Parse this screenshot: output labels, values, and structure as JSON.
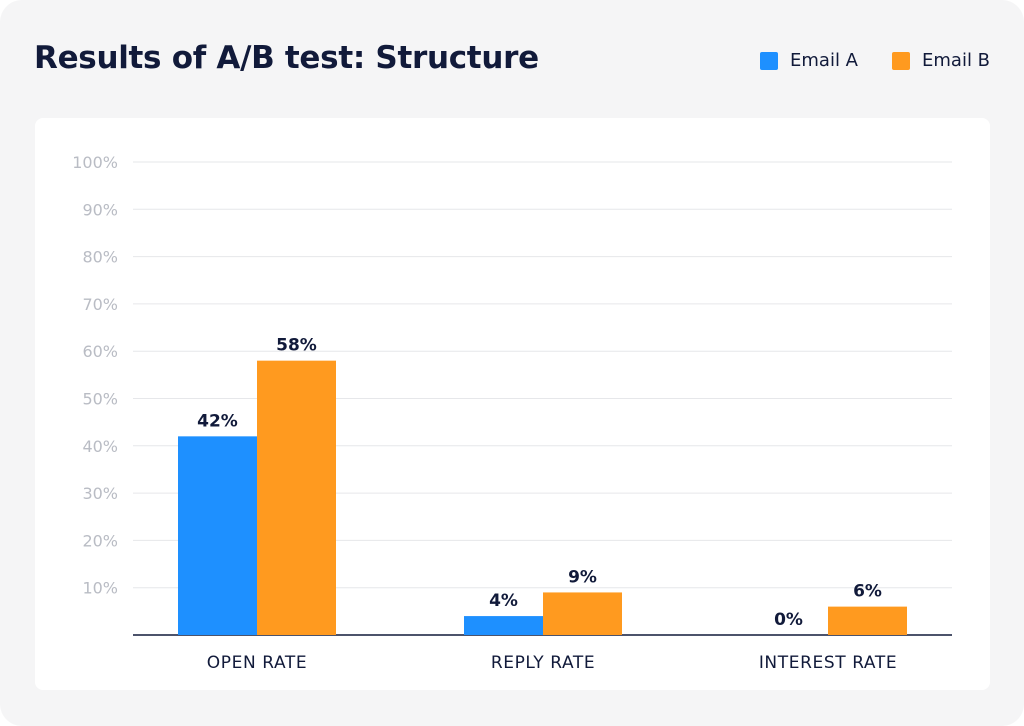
{
  "chart_data": {
    "type": "bar",
    "title": "Results of A/B test: Structure",
    "categories": [
      "OPEN RATE",
      "REPLY RATE",
      "INTEREST RATE"
    ],
    "series": [
      {
        "name": "Email A",
        "color": "#1e90ff",
        "values": [
          42,
          4,
          0
        ],
        "labels": [
          "42%",
          "4%",
          "0%"
        ]
      },
      {
        "name": "Email B",
        "color": "#ff9a1f",
        "values": [
          58,
          9,
          6
        ],
        "labels": [
          "58%",
          "9%",
          "6%"
        ]
      }
    ],
    "ylim": [
      0,
      100
    ],
    "yticks": [
      10,
      20,
      30,
      40,
      50,
      60,
      70,
      80,
      90,
      100
    ],
    "ytick_labels": [
      "10%",
      "20%",
      "30%",
      "40%",
      "50%",
      "60%",
      "70%",
      "80%",
      "90%",
      "100%"
    ],
    "grid": true,
    "legend_position": "top-right"
  }
}
